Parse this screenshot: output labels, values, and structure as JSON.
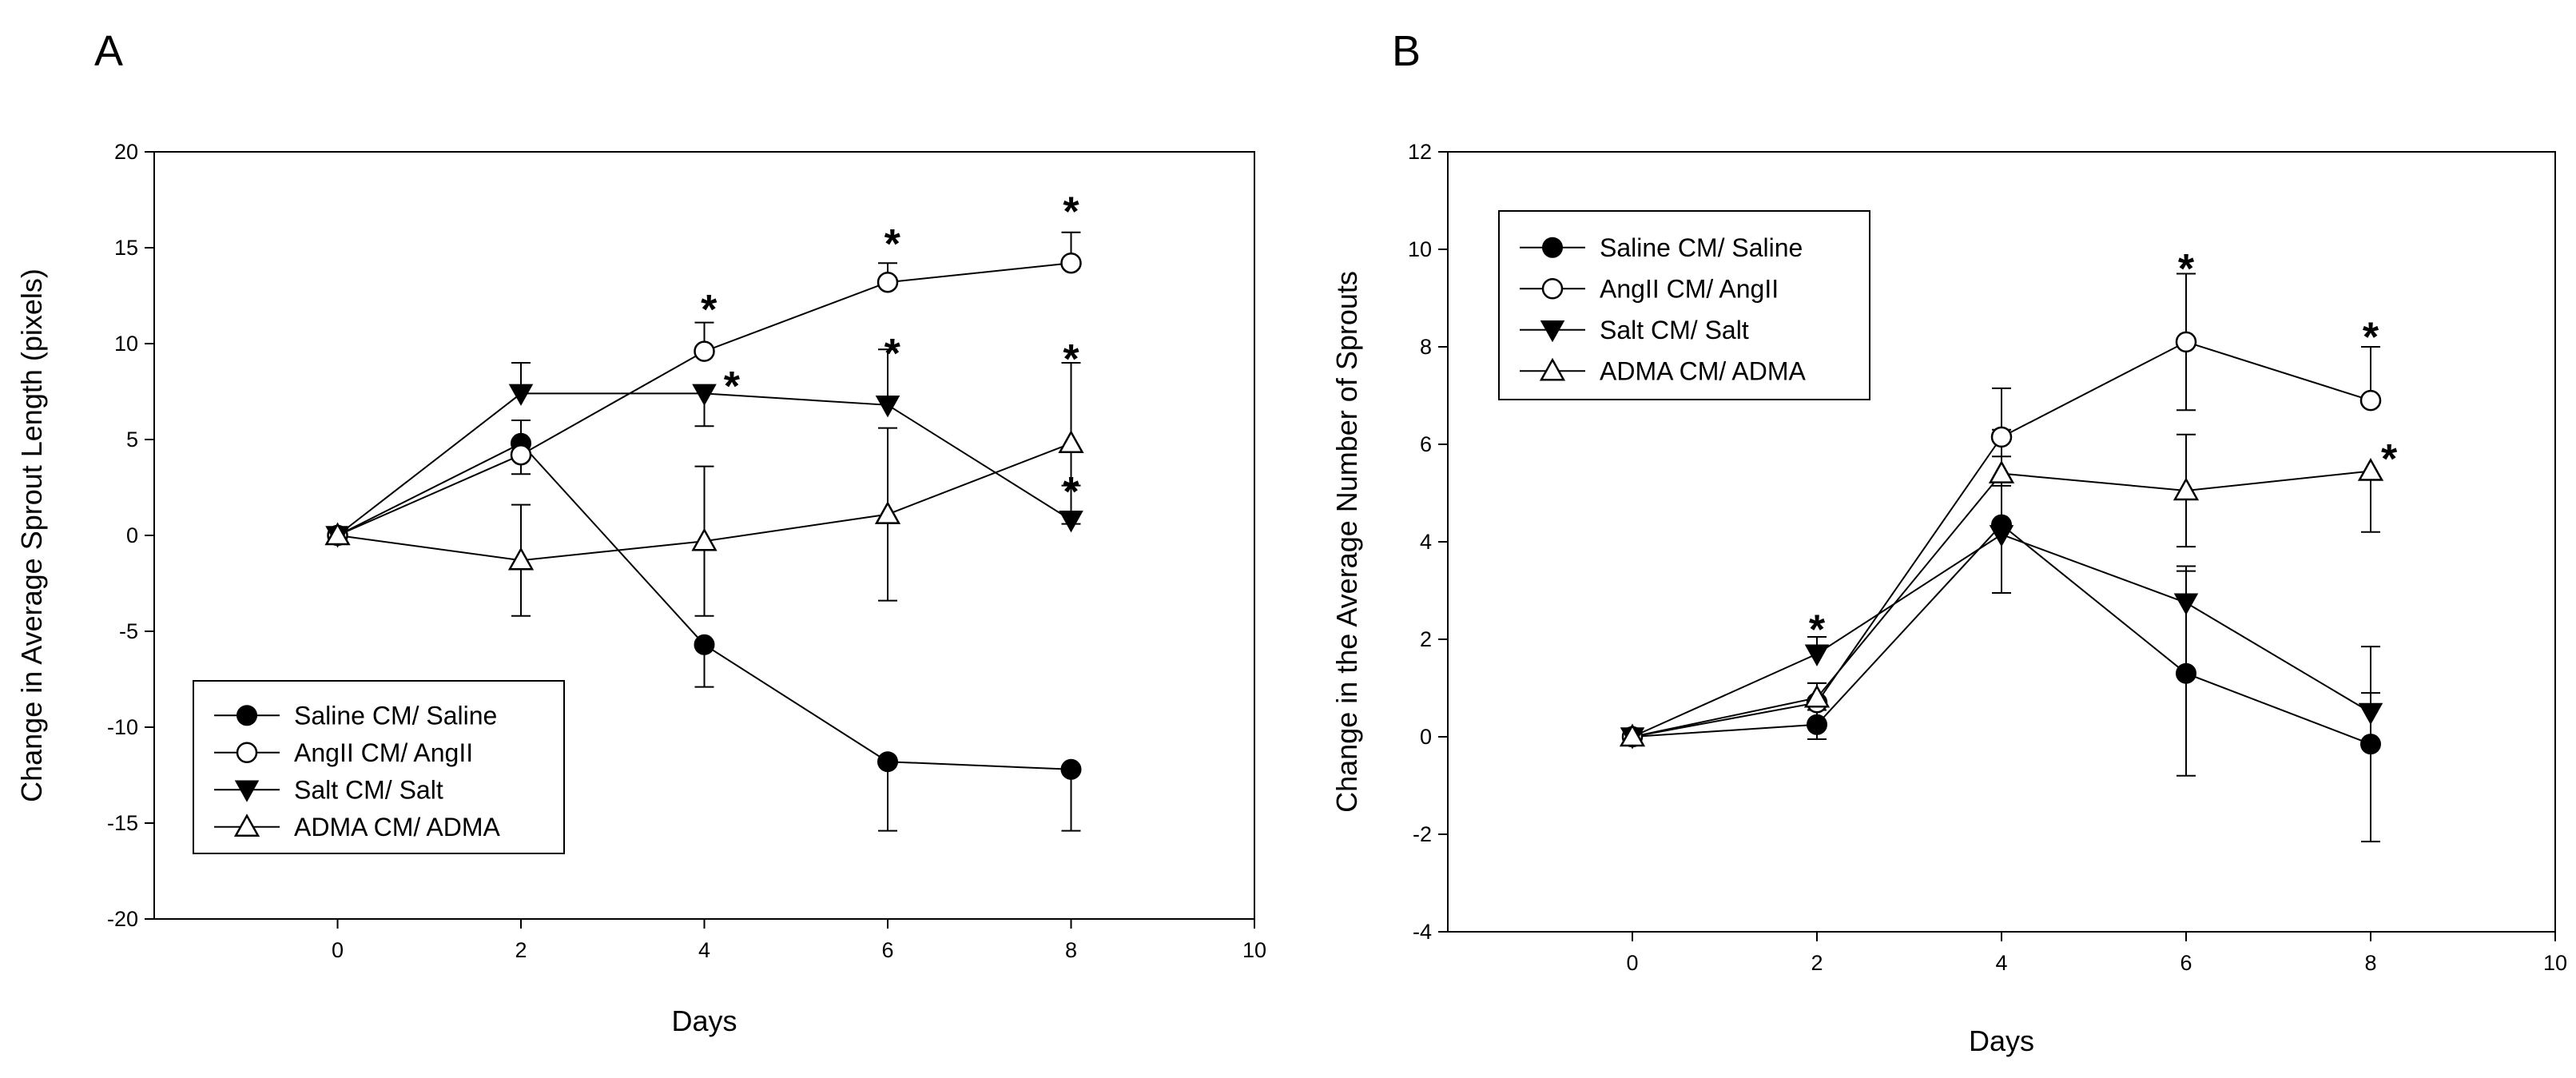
{
  "chart_data": [
    {
      "type": "line",
      "panel_label": "A",
      "title": "",
      "xlabel": "Days",
      "ylabel": "Change in Average Sprout Length (pixels)",
      "xlim": [
        -2,
        10
      ],
      "ylim": [
        -20,
        20
      ],
      "xticks": [
        0,
        2,
        4,
        6,
        8,
        10
      ],
      "yticks": [
        -20,
        -15,
        -10,
        -5,
        0,
        5,
        10,
        15,
        20
      ],
      "legend_placement": "bottom-left",
      "series": [
        {
          "name": "Saline CM/ Saline",
          "marker": "filled-circle",
          "x": [
            0,
            2,
            4,
            6,
            8
          ],
          "values": [
            0,
            4.8,
            -5.7,
            -11.8,
            -12.2
          ],
          "err": [
            0,
            1.2,
            2.2,
            3.6,
            3.2
          ],
          "err_dir": [
            0,
            1,
            -1,
            -1,
            -1
          ]
        },
        {
          "name": "AngII CM/ AngII",
          "marker": "open-circle",
          "x": [
            0,
            2,
            4,
            6,
            8
          ],
          "values": [
            0,
            4.2,
            9.6,
            13.2,
            14.2
          ],
          "err": [
            0,
            1.0,
            1.5,
            1.0,
            1.6
          ],
          "err_dir": [
            0,
            -1,
            1,
            1,
            1
          ]
        },
        {
          "name": "Salt CM/ Salt",
          "marker": "filled-triangle-down",
          "x": [
            0,
            2,
            4,
            6,
            8
          ],
          "values": [
            0,
            7.4,
            7.4,
            6.8,
            0.8
          ],
          "err": [
            0,
            1.6,
            1.7,
            2.9,
            1.8
          ],
          "err_dir": [
            0,
            1,
            -1,
            1,
            1
          ]
        },
        {
          "name": "ADMA CM/ ADMA",
          "marker": "open-triangle-up",
          "x": [
            0,
            2,
            4,
            6,
            8
          ],
          "values": [
            0,
            -1.3,
            -0.3,
            1.1,
            4.8
          ],
          "err": [
            0,
            2.9,
            3.9,
            4.5,
            4.2
          ],
          "err_dir": [
            0,
            2,
            2,
            2,
            2
          ]
        }
      ],
      "annotations": [
        {
          "text": "*",
          "x": 4.05,
          "y": 12.3
        },
        {
          "text": "*",
          "x": 4.3,
          "y": 8.3
        },
        {
          "text": "*",
          "x": 6.05,
          "y": 15.7
        },
        {
          "text": "*",
          "x": 6.05,
          "y": 10.0
        },
        {
          "text": "*",
          "x": 8.0,
          "y": 17.4
        },
        {
          "text": "*",
          "x": 8.0,
          "y": 9.7
        },
        {
          "text": "*",
          "x": 8.0,
          "y": 2.8
        }
      ]
    },
    {
      "type": "line",
      "panel_label": "B",
      "title": "",
      "xlabel": "Days",
      "ylabel": "Change in the Average Number of Sprouts",
      "xlim": [
        -2,
        10
      ],
      "ylim": [
        -4,
        12
      ],
      "xticks": [
        0,
        2,
        4,
        6,
        8,
        10
      ],
      "yticks": [
        -4,
        -2,
        0,
        2,
        4,
        6,
        8,
        10,
        12
      ],
      "legend_placement": "top-left",
      "series": [
        {
          "name": "Saline CM/ Saline",
          "marker": "filled-circle",
          "x": [
            0,
            2,
            4,
            6,
            8
          ],
          "values": [
            0,
            0.25,
            4.35,
            1.3,
            -0.15
          ],
          "err": [
            0,
            0.3,
            1.4,
            2.1,
            2.0
          ],
          "err_dir": [
            0,
            2,
            2,
            2,
            2
          ]
        },
        {
          "name": "AngII CM/ AngII",
          "marker": "open-circle",
          "x": [
            0,
            2,
            4,
            6,
            8
          ],
          "values": [
            0,
            0.7,
            6.15,
            8.1,
            6.9
          ],
          "err": [
            0,
            0.4,
            1.0,
            1.4,
            1.1
          ],
          "err_dir": [
            0,
            1,
            1,
            2,
            1
          ]
        },
        {
          "name": "Salt CM/ Salt",
          "marker": "filled-triangle-down",
          "x": [
            0,
            2,
            4,
            6,
            8
          ],
          "values": [
            0,
            1.7,
            4.15,
            2.75,
            0.5
          ],
          "err": [
            0,
            0.35,
            1.0,
            0.75,
            0.4
          ],
          "err_dir": [
            0,
            1,
            1,
            1,
            1
          ]
        },
        {
          "name": "ADMA CM/ ADMA",
          "marker": "open-triangle-up",
          "x": [
            0,
            2,
            4,
            6,
            8
          ],
          "values": [
            0,
            0.8,
            5.4,
            5.05,
            5.45
          ],
          "err": [
            0,
            0.3,
            0.9,
            1.15,
            1.25
          ],
          "err_dir": [
            0,
            1,
            1,
            2,
            -1
          ]
        }
      ],
      "annotations": [
        {
          "text": "*",
          "x": 2.0,
          "y": 2.4
        },
        {
          "text": "*",
          "x": 6.0,
          "y": 9.8
        },
        {
          "text": "*",
          "x": 8.0,
          "y": 8.4
        },
        {
          "text": "*",
          "x": 8.2,
          "y": 5.9
        }
      ]
    }
  ]
}
